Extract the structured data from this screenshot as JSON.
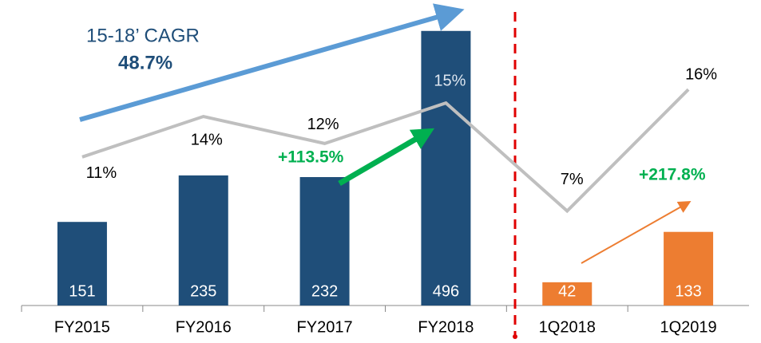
{
  "chart_data": {
    "type": "bar",
    "categories": [
      "FY2015",
      "FY2016",
      "FY2017",
      "FY2018",
      "1Q2018",
      "1Q2019"
    ],
    "series": [
      {
        "type": "bar",
        "colors": [
          "#1f4e79",
          "#1f4e79",
          "#1f4e79",
          "#1f4e79",
          "#ed7d31",
          "#ed7d31"
        ],
        "values": [
          151,
          235,
          232,
          496,
          42,
          133
        ]
      },
      {
        "type": "line",
        "axis": "y2",
        "color": "#bfbfbf",
        "values": [
          11,
          14,
          12,
          15,
          7,
          16
        ],
        "value_labels": [
          "11%",
          "14%",
          "12%",
          "15%",
          "7%",
          "16%"
        ]
      }
    ],
    "ylim": [
      0,
      500
    ],
    "y2lim": [
      0,
      20.5
    ],
    "annotations": {
      "cagr_label": "15-18’ CAGR",
      "cagr_value": "48.7%",
      "fy_growth": "+113.5%",
      "q_growth": "+217.8%"
    }
  }
}
